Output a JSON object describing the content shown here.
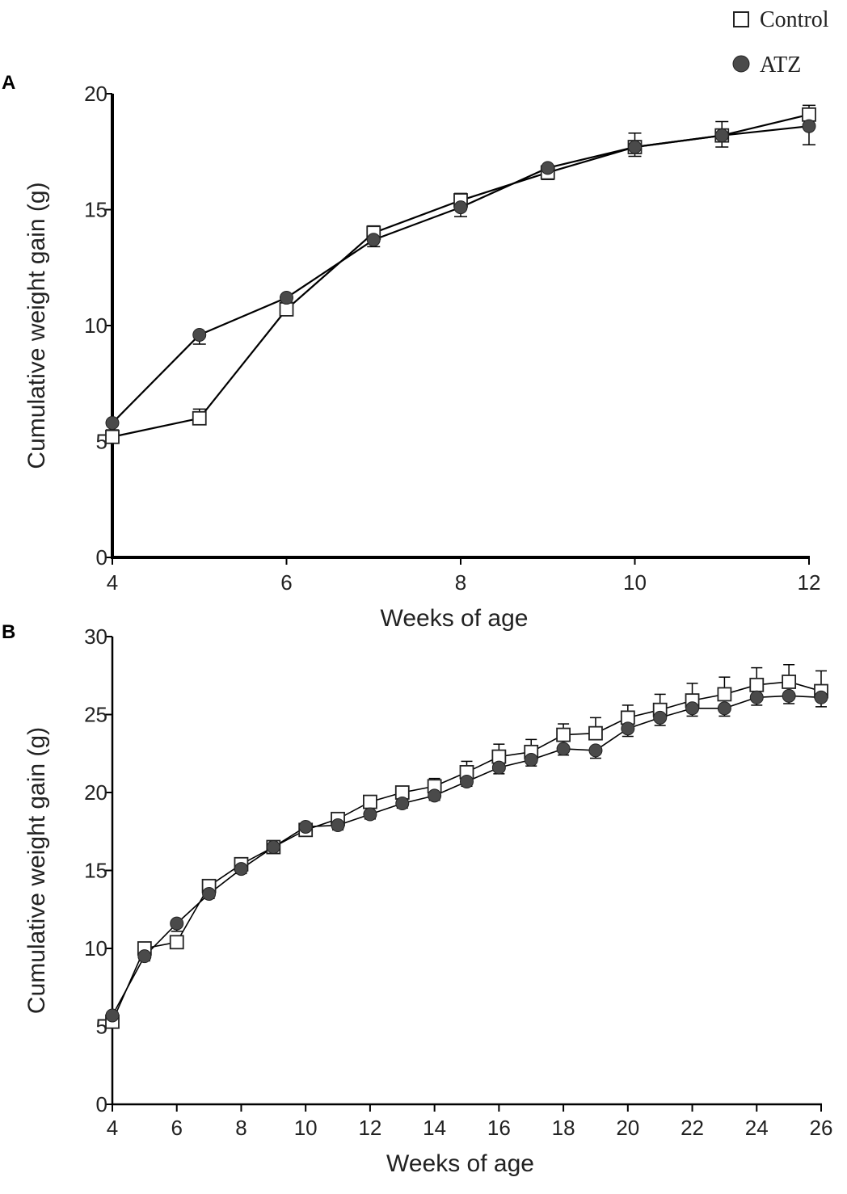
{
  "legend": {
    "entries": [
      {
        "label": "Control",
        "marker": "open-square"
      },
      {
        "label": "ATZ",
        "marker": "filled-circle"
      }
    ]
  },
  "colors": {
    "atz_fill": "#4a4a4a",
    "control_fill": "#ffffff",
    "line": "#000000"
  },
  "chart_data": [
    {
      "panel": "A",
      "type": "line",
      "xlabel": "Weeks of age",
      "ylabel": "Cumulative weight gain (g)",
      "xlim": [
        4,
        12
      ],
      "ylim": [
        0,
        20
      ],
      "xticks": [
        4,
        6,
        8,
        10,
        12
      ],
      "yticks": [
        0,
        5,
        10,
        15,
        20
      ],
      "x": [
        4,
        5,
        6,
        7,
        8,
        9,
        10,
        11,
        12
      ],
      "series": [
        {
          "name": "Control",
          "marker": "open-square",
          "values": [
            5.2,
            6.0,
            10.7,
            14.0,
            15.4,
            16.6,
            17.7,
            18.2,
            19.1
          ],
          "errors": [
            0.3,
            0.4,
            0.3,
            0.3,
            0.3,
            0.3,
            0.6,
            0.6,
            0.4
          ]
        },
        {
          "name": "ATZ",
          "marker": "filled-circle",
          "values": [
            5.8,
            9.6,
            11.2,
            13.7,
            15.1,
            16.8,
            17.7,
            18.2,
            18.6
          ],
          "errors": [
            0.3,
            0.4,
            0.4,
            0.3,
            0.4,
            0.5,
            0.4,
            0.5,
            0.8
          ]
        }
      ]
    },
    {
      "panel": "B",
      "type": "line",
      "xlabel": "Weeks of age",
      "ylabel": "Cumulative weight gain (g)",
      "xlim": [
        4,
        26
      ],
      "ylim": [
        0,
        30
      ],
      "xticks": [
        4,
        6,
        8,
        10,
        12,
        14,
        16,
        18,
        20,
        22,
        24,
        26
      ],
      "yticks": [
        0,
        5,
        10,
        15,
        20,
        25,
        30
      ],
      "x": [
        4,
        5,
        6,
        7,
        8,
        9,
        10,
        11,
        12,
        13,
        14,
        15,
        16,
        17,
        18,
        19,
        20,
        21,
        22,
        23,
        24,
        25,
        26
      ],
      "series": [
        {
          "name": "Control",
          "marker": "open-square",
          "values": [
            5.3,
            10.0,
            10.4,
            14.0,
            15.4,
            16.5,
            17.6,
            18.3,
            19.4,
            20.0,
            20.4,
            21.3,
            22.3,
            22.6,
            23.7,
            23.8,
            24.8,
            25.3,
            25.9,
            26.3,
            26.9,
            27.1,
            26.5
          ],
          "errors": [
            0.3,
            0.3,
            0.4,
            0.4,
            0.3,
            0.3,
            0.3,
            0.3,
            0.4,
            0.4,
            0.5,
            0.7,
            0.8,
            0.8,
            0.7,
            1.0,
            0.8,
            1.0,
            1.1,
            1.1,
            1.1,
            1.1,
            1.3
          ]
        },
        {
          "name": "ATZ",
          "marker": "filled-circle",
          "values": [
            5.7,
            9.5,
            11.6,
            13.5,
            15.1,
            16.5,
            17.8,
            17.9,
            18.6,
            19.3,
            19.8,
            20.7,
            21.6,
            22.1,
            22.8,
            22.7,
            24.1,
            24.8,
            25.4,
            25.4,
            26.1,
            26.2,
            26.1
          ],
          "errors": [
            0.3,
            0.3,
            0.5,
            0.3,
            0.3,
            0.3,
            0.3,
            0.3,
            0.3,
            0.3,
            0.3,
            0.3,
            0.4,
            0.4,
            0.4,
            0.5,
            0.5,
            0.5,
            0.5,
            0.5,
            0.5,
            0.5,
            0.6
          ]
        }
      ]
    }
  ]
}
